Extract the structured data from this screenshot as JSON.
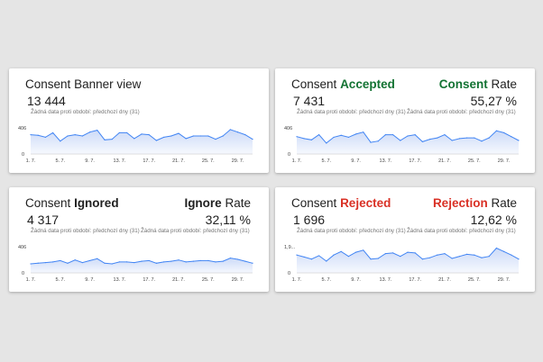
{
  "colors": {
    "accepted": "#137333",
    "rejected": "#d93025",
    "line": "#4285f4",
    "fill_top": "#c6d6f7"
  },
  "cards": [
    {
      "title_prefix": "Consent",
      "title_suffix": "Banner view",
      "value": "13 444",
      "subtitle": "Žádná data proti období: předchozí dny (31)"
    },
    {
      "title_prefix": "Consent",
      "title_word": "Accepted",
      "rate_word": "Consent",
      "rate_suffix": "Rate",
      "value": "7 431",
      "rate_value": "55,27 %",
      "subtitle": "Žádná data proti období: předchozí dny (31)",
      "subtitle2": "Žádná data proti období: předchozí dny (31)"
    },
    {
      "title_prefix": "Consent",
      "title_word": "Ignored",
      "rate_word": "Ignore",
      "rate_suffix": "Rate",
      "value": "4 317",
      "rate_value": "32,11 %",
      "subtitle": "Žádná data proti období: předchozí dny (31)",
      "subtitle2": "Žádná data proti období: předchozí dny (31)"
    },
    {
      "title_prefix": "Consent",
      "title_word": "Rejected",
      "rate_word": "Rejection",
      "rate_suffix": "Rate",
      "value": "1 696",
      "rate_value": "12,62 %",
      "subtitle": "Žádná data proti období: předchozí dny (31)",
      "subtitle2": "Žádná data proti období: předchozí dny (31)"
    }
  ],
  "chart_data": [
    {
      "type": "area",
      "title": "Consent Banner view",
      "y_top_label": "406",
      "y_bottom_label": "0",
      "ylim": [
        0,
        406
      ],
      "x_ticks": [
        "1. 7.",
        "5. 7.",
        "9. 7.",
        "13. 7.",
        "17. 7.",
        "21. 7.",
        "25. 7.",
        "29. 7."
      ],
      "x": [
        1,
        2,
        3,
        4,
        5,
        6,
        7,
        8,
        9,
        10,
        11,
        12,
        13,
        14,
        15,
        16,
        17,
        18,
        19,
        20,
        21,
        22,
        23,
        24,
        25,
        26,
        27,
        28,
        29,
        30,
        31
      ],
      "values": [
        300,
        290,
        260,
        330,
        200,
        280,
        300,
        280,
        340,
        370,
        220,
        230,
        330,
        330,
        240,
        310,
        300,
        210,
        260,
        280,
        320,
        240,
        280,
        280,
        280,
        230,
        280,
        380,
        340,
        300,
        230
      ]
    },
    {
      "type": "area",
      "title": "Consent Accepted",
      "y_top_label": "406",
      "y_bottom_label": "0",
      "ylim": [
        0,
        406
      ],
      "x_ticks": [
        "1. 7.",
        "5. 7.",
        "9. 7.",
        "13. 7.",
        "17. 7.",
        "21. 7.",
        "25. 7.",
        "29. 7."
      ],
      "x": [
        1,
        2,
        3,
        4,
        5,
        6,
        7,
        8,
        9,
        10,
        11,
        12,
        13,
        14,
        15,
        16,
        17,
        18,
        19,
        20,
        21,
        22,
        23,
        24,
        25,
        26,
        27,
        28,
        29,
        30,
        31
      ],
      "values": [
        270,
        240,
        220,
        300,
        170,
        260,
        290,
        260,
        310,
        340,
        180,
        200,
        300,
        300,
        210,
        280,
        300,
        190,
        230,
        250,
        300,
        210,
        240,
        250,
        250,
        200,
        250,
        360,
        330,
        270,
        210
      ]
    },
    {
      "type": "area",
      "title": "Consent Ignored",
      "y_top_label": "406",
      "y_bottom_label": "0",
      "ylim": [
        0,
        406
      ],
      "x_ticks": [
        "1. 7.",
        "5. 7.",
        "9. 7.",
        "13. 7.",
        "17. 7.",
        "21. 7.",
        "25. 7.",
        "29. 7."
      ],
      "x": [
        1,
        2,
        3,
        4,
        5,
        6,
        7,
        8,
        9,
        10,
        11,
        12,
        13,
        14,
        15,
        16,
        17,
        18,
        19,
        20,
        21,
        22,
        23,
        24,
        25,
        26,
        27,
        28,
        29,
        30,
        31
      ],
      "values": [
        140,
        150,
        160,
        170,
        190,
        150,
        200,
        160,
        190,
        220,
        150,
        140,
        170,
        170,
        160,
        180,
        190,
        150,
        170,
        180,
        200,
        170,
        180,
        190,
        190,
        170,
        180,
        230,
        210,
        180,
        150
      ]
    },
    {
      "type": "area",
      "title": "Consent Rejected",
      "y_top_label": "1,9...",
      "y_bottom_label": "0",
      "ylim": [
        0,
        1.9
      ],
      "x_ticks": [
        "1. 7.",
        "5. 7.",
        "9. 7.",
        "13. 7.",
        "17. 7.",
        "21. 7.",
        "25. 7.",
        "29. 7."
      ],
      "x": [
        1,
        2,
        3,
        4,
        5,
        6,
        7,
        8,
        9,
        10,
        11,
        12,
        13,
        14,
        15,
        16,
        17,
        18,
        19,
        20,
        21,
        22,
        23,
        24,
        25,
        26,
        27,
        28,
        29,
        30,
        31
      ],
      "values": [
        1.3,
        1.15,
        1.0,
        1.25,
        0.85,
        1.3,
        1.55,
        1.2,
        1.5,
        1.65,
        1.0,
        1.05,
        1.4,
        1.45,
        1.2,
        1.5,
        1.45,
        1.0,
        1.1,
        1.3,
        1.4,
        1.05,
        1.2,
        1.35,
        1.3,
        1.1,
        1.2,
        1.8,
        1.55,
        1.3,
        1.0
      ]
    }
  ]
}
